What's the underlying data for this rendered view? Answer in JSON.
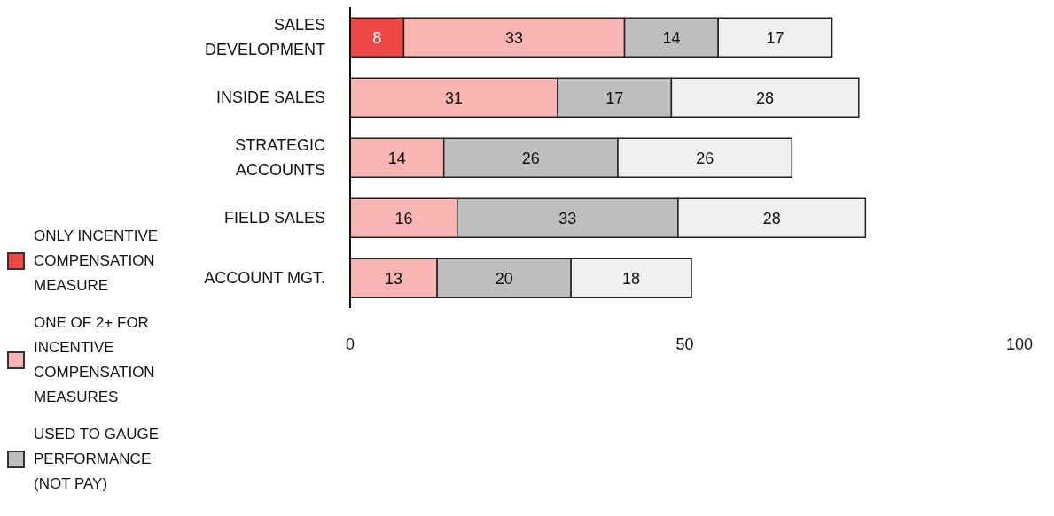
{
  "chart_data": {
    "type": "bar",
    "orientation": "horizontal",
    "stacked": true,
    "categories": [
      "SALES DEVELOPMENT",
      "INSIDE SALES",
      "STRATEGIC ACCOUNTS",
      "FIELD SALES",
      "ACCOUNT MGT."
    ],
    "series": [
      {
        "name": "ONLY INCENTIVE COMPENSATION MEASURE",
        "color": "#f04848",
        "values": [
          8,
          null,
          null,
          null,
          null
        ]
      },
      {
        "name": "ONE OF 2+ FOR INCENTIVE COMPENSATION MEASURES",
        "color": "#f9b4b4",
        "values": [
          33,
          31,
          14,
          16,
          13
        ]
      },
      {
        "name": "USED TO GAUGE PERFORMANCE (NOT PAY)",
        "color": "#bebebe",
        "values": [
          14,
          17,
          26,
          33,
          20
        ]
      },
      {
        "color": "#f0f0f0",
        "values": [
          17,
          28,
          26,
          28,
          18
        ]
      }
    ],
    "xlim": [
      0,
      100
    ],
    "xticks": [
      0,
      50,
      100
    ],
    "legend": "bottom left",
    "data_labels": true
  }
}
